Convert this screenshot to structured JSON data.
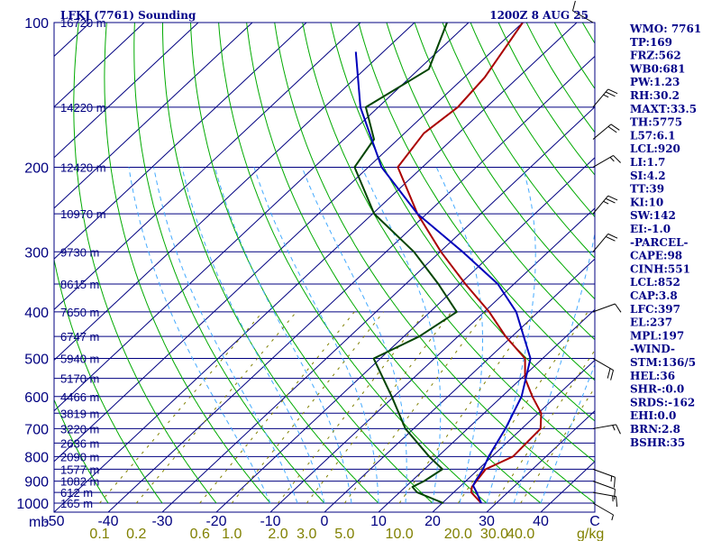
{
  "header": {
    "station_title": "LFKJ (7761) Sounding",
    "valid_time": "1200Z  8 AUG 25"
  },
  "colors": {
    "frame": "#000080",
    "isobar": "#000080",
    "isotherm": "#000080",
    "dry_adiabat": "#00aa00",
    "moist_adiabat": "#44aaff",
    "mixing_ratio": "#808000",
    "temperature": "#aa0000",
    "dewpoint": "#004400",
    "parcel": "#0000bb",
    "wind": "#000000"
  },
  "axes": {
    "pressure_unit_label": "mb",
    "mixing_ratio_unit_label": "g/kg",
    "pressure_ticks": [
      {
        "p": 100,
        "label": "100"
      },
      {
        "p": 200,
        "label": "200"
      },
      {
        "p": 300,
        "label": "300"
      },
      {
        "p": 400,
        "label": "400"
      },
      {
        "p": 500,
        "label": "500"
      },
      {
        "p": 600,
        "label": "600"
      },
      {
        "p": 700,
        "label": "700"
      },
      {
        "p": 800,
        "label": "800"
      },
      {
        "p": 900,
        "label": "900"
      },
      {
        "p": 1000,
        "label": "1000"
      }
    ],
    "height_ticks": [
      {
        "p": 100,
        "label": "16720 m"
      },
      {
        "p": 150,
        "label": "14220 m"
      },
      {
        "p": 200,
        "label": "12420 m"
      },
      {
        "p": 250,
        "label": "10970 m"
      },
      {
        "p": 300,
        "label": "9730 m"
      },
      {
        "p": 350,
        "label": "8615 m"
      },
      {
        "p": 400,
        "label": "7650 m"
      },
      {
        "p": 450,
        "label": "6747 m"
      },
      {
        "p": 500,
        "label": "5940 m"
      },
      {
        "p": 550,
        "label": "5170 m"
      },
      {
        "p": 600,
        "label": "4466 m"
      },
      {
        "p": 650,
        "label": "3819 m"
      },
      {
        "p": 700,
        "label": "3220 m"
      },
      {
        "p": 750,
        "label": "2636 m"
      },
      {
        "p": 800,
        "label": "2090 m"
      },
      {
        "p": 850,
        "label": "1577 m"
      },
      {
        "p": 900,
        "label": "1082 m"
      },
      {
        "p": 950,
        "label": "612 m"
      },
      {
        "p": 1000,
        "label": "165 m"
      }
    ],
    "temperature_ticks": [
      {
        "t": -50,
        "label": "-50"
      },
      {
        "t": -40,
        "label": "-40"
      },
      {
        "t": -30,
        "label": "-30"
      },
      {
        "t": -20,
        "label": "-20"
      },
      {
        "t": -10,
        "label": "-10"
      },
      {
        "t": 0,
        "label": "0"
      },
      {
        "t": 10,
        "label": "10"
      },
      {
        "t": 20,
        "label": "20"
      },
      {
        "t": 30,
        "label": "30"
      },
      {
        "t": 40,
        "label": "40"
      },
      {
        "t": 50,
        "label": "C"
      }
    ],
    "mixing_ratio_ticks": [
      {
        "w": 0.1,
        "label": "0.1"
      },
      {
        "w": 0.2,
        "label": "0.2"
      },
      {
        "w": 0.6,
        "label": "0.6"
      },
      {
        "w": 1.0,
        "label": "1.0"
      },
      {
        "w": 2.0,
        "label": "2.0"
      },
      {
        "w": 3.0,
        "label": "3.0"
      },
      {
        "w": 5.0,
        "label": "5.0"
      },
      {
        "w": 10.0,
        "label": "10.0"
      },
      {
        "w": 20.0,
        "label": "20.0"
      },
      {
        "w": 30.0,
        "label": "30.0"
      },
      {
        "w": 40.0,
        "label": "40.0"
      }
    ]
  },
  "chart_data": {
    "type": "line",
    "p_range": [
      1000,
      100
    ],
    "t_range_at_1000mb": [
      -50,
      50
    ],
    "pressure_scale": "log",
    "series": [
      {
        "key": "temperature",
        "points": [
          [
            1000,
            29
          ],
          [
            950,
            25
          ],
          [
            925,
            24
          ],
          [
            850,
            23
          ],
          [
            800,
            25.5
          ],
          [
            700,
            25
          ],
          [
            650,
            22
          ],
          [
            600,
            17
          ],
          [
            550,
            12
          ],
          [
            500,
            8
          ],
          [
            450,
            0
          ],
          [
            400,
            -8
          ],
          [
            350,
            -18
          ],
          [
            300,
            -29
          ],
          [
            250,
            -41
          ],
          [
            200,
            -54
          ],
          [
            170,
            -56
          ],
          [
            150,
            -55
          ],
          [
            130,
            -56
          ],
          [
            100,
            -60
          ]
        ]
      },
      {
        "key": "dewpoint",
        "points": [
          [
            1000,
            22
          ],
          [
            950,
            15
          ],
          [
            925,
            13
          ],
          [
            900,
            14
          ],
          [
            850,
            15
          ],
          [
            800,
            10
          ],
          [
            700,
            0
          ],
          [
            600,
            -9
          ],
          [
            500,
            -20
          ],
          [
            450,
            -16
          ],
          [
            400,
            -14
          ],
          [
            350,
            -23
          ],
          [
            300,
            -34
          ],
          [
            250,
            -49
          ],
          [
            200,
            -62
          ],
          [
            175,
            -64
          ],
          [
            150,
            -72
          ],
          [
            125,
            -68
          ],
          [
            100,
            -74
          ]
        ]
      },
      {
        "key": "parcel",
        "points": [
          [
            1000,
            29
          ],
          [
            950,
            26
          ],
          [
            920,
            24
          ],
          [
            900,
            23.5
          ],
          [
            850,
            22.5
          ],
          [
            800,
            21
          ],
          [
            700,
            18.5
          ],
          [
            600,
            15
          ],
          [
            500,
            9
          ],
          [
            400,
            -3
          ],
          [
            350,
            -12
          ],
          [
            300,
            -25
          ],
          [
            250,
            -41
          ],
          [
            200,
            -57
          ],
          [
            150,
            -73
          ],
          [
            115,
            -85
          ]
        ]
      }
    ],
    "wind_barbs": [
      {
        "p": 1000,
        "dir": 120,
        "spd": 5
      },
      {
        "p": 950,
        "dir": 100,
        "spd": 15
      },
      {
        "p": 900,
        "dir": 110,
        "spd": 10
      },
      {
        "p": 850,
        "dir": 110,
        "spd": 15
      },
      {
        "p": 700,
        "dir": 80,
        "spd": 15
      },
      {
        "p": 500,
        "dir": 120,
        "spd": 20
      },
      {
        "p": 400,
        "dir": 70,
        "spd": 10
      },
      {
        "p": 300,
        "dir": 40,
        "spd": 20
      },
      {
        "p": 250,
        "dir": 40,
        "spd": 25
      },
      {
        "p": 200,
        "dir": 60,
        "spd": 15
      },
      {
        "p": 175,
        "dir": 50,
        "spd": 20
      },
      {
        "p": 150,
        "dir": 40,
        "spd": 25
      },
      {
        "p": 100,
        "dir": 300,
        "spd": 10
      }
    ]
  },
  "indices": [
    "WMO: 7761",
    "TP:169",
    "FRZ:562",
    "WB0:681",
    "PW:1.23",
    "RH:30.2",
    "MAXT:33.5",
    "TH:5775",
    "L57:6.1",
    "LCL:920",
    "LI:1.7",
    "SI:4.2",
    "TT:39",
    "KI:10",
    "SW:142",
    "EI:-1.0",
    "-PARCEL-",
    "CAPE:98",
    "CINH:551",
    "LCL:852",
    "CAP:3.8",
    "LFC:397",
    "EL:237",
    "MPL:197",
    "-WIND-",
    "STM:136/5",
    "HEL:36",
    "SHR-:0.0",
    "SRDS:-162",
    "EHI:0.0",
    "BRN:2.8",
    "BSHR:35"
  ]
}
